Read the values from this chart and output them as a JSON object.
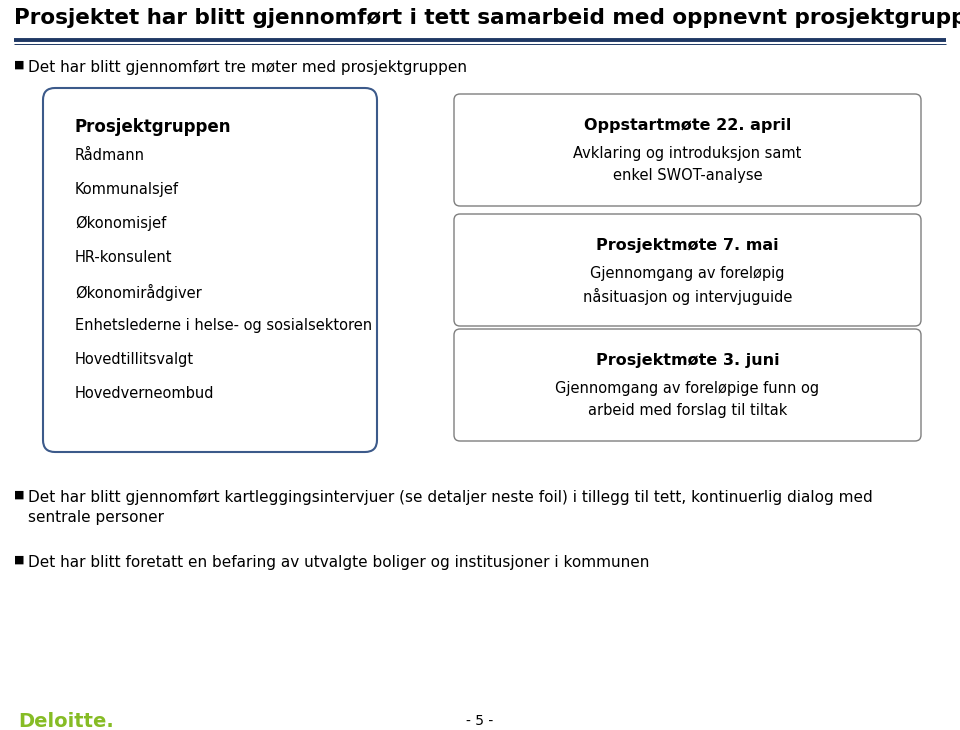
{
  "title": "Prosjektet har blitt gjennomført i tett samarbeid med oppnevnt prosjektgruppe",
  "title_color": "#000000",
  "title_fontsize": 15.5,
  "bg_color": "#ffffff",
  "header_line_color": "#1f3864",
  "bullet1": "Det har blitt gjennomført tre møter med prosjektgruppen",
  "left_box_title": "Prosjektgruppen",
  "left_box_items": [
    "Rådmann",
    "Kommunalsjef",
    "Økonomisjef",
    "HR-konsulent",
    "Økonomirådgiver",
    "Enhetslederne i helse- og sosialsektoren",
    "Hovedtillitsvalgt",
    "Hovedverneombud"
  ],
  "left_box_border_color": "#3c5a8a",
  "left_box_bg": "#ffffff",
  "right_boxes": [
    {
      "title": "Oppstartmøte 22. april",
      "lines": [
        "Avklaring og introduksjon samt",
        "enkel SWOT-analyse"
      ],
      "border_color": "#7f7f7f",
      "bg": "#ffffff"
    },
    {
      "title": "Prosjektmøte 7. mai",
      "lines": [
        "Gjennomgang av foreløpig",
        "nåsituasjon og intervjuguide"
      ],
      "border_color": "#7f7f7f",
      "bg": "#ffffff"
    },
    {
      "title": "Prosjektmøte 3. juni",
      "lines": [
        "Gjennomgang av foreløpige funn og",
        "arbeid med forslag til tiltak"
      ],
      "border_color": "#7f7f7f",
      "bg": "#ffffff"
    }
  ],
  "bullet2_line1": "Det har blitt gjennomført kartleggingsintervjuer (se detaljer neste foil) i tillegg til tett, kontinuerlig dialog med",
  "bullet2_line2": "sentrale personer",
  "bullet3": "Det har blitt foretatt en befaring av utvalgte boliger og institusjoner i kommunen",
  "footer_text": "- 5 -",
  "deloitte_text": "Deloitte.",
  "deloitte_color": "#86bc25",
  "text_color": "#000000",
  "body_fontsize": 11
}
